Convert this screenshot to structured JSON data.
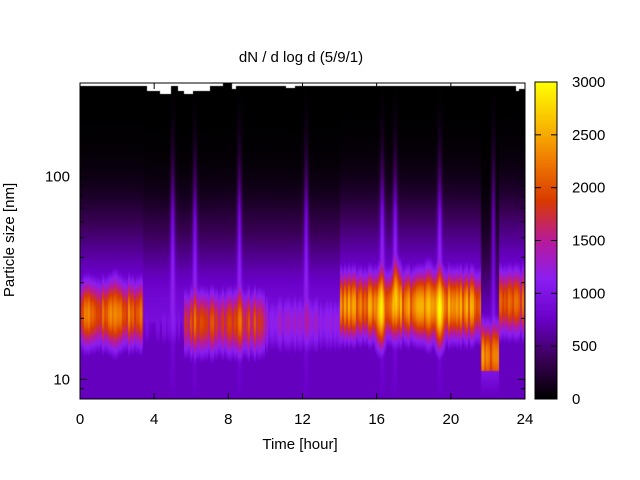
{
  "chart_data": {
    "type": "heatmap",
    "title": "dN / d log d (5/9/1)",
    "xlabel": "Time [hour]",
    "ylabel": "Particle size [nm]",
    "x_range": [
      0,
      24
    ],
    "y_range_nm": [
      8,
      290
    ],
    "y_scale": "log",
    "x_ticks": [
      "0",
      "4",
      "8",
      "12",
      "16",
      "20",
      "24"
    ],
    "y_ticks": [
      "10",
      "100"
    ],
    "colorbar": {
      "range": [
        0,
        3000
      ],
      "ticks": [
        "0",
        "500",
        "1000",
        "1500",
        "2000",
        "2500",
        "3000"
      ],
      "palette": [
        "#000000",
        "#3a0055",
        "#6a00c8",
        "#8a1ef2",
        "#b81a9a",
        "#d93a00",
        "#ef7a00",
        "#f9c000",
        "#ffff00"
      ]
    },
    "grid": false,
    "data_ceiling_nm": [
      [
        0,
        280
      ],
      [
        3.5,
        280
      ],
      [
        3.6,
        265
      ],
      [
        4.2,
        265
      ],
      [
        4.3,
        255
      ],
      [
        4.8,
        255
      ],
      [
        4.9,
        280
      ],
      [
        5.1,
        280
      ],
      [
        5.3,
        265
      ],
      [
        5.5,
        265
      ],
      [
        5.6,
        255
      ],
      [
        6.0,
        255
      ],
      [
        6.1,
        265
      ],
      [
        6.9,
        265
      ],
      [
        7.0,
        280
      ],
      [
        7.6,
        280
      ],
      [
        7.7,
        290
      ],
      [
        8.0,
        290
      ],
      [
        8.2,
        270
      ],
      [
        8.4,
        280
      ],
      [
        11.0,
        280
      ],
      [
        11.1,
        275
      ],
      [
        11.5,
        275
      ],
      [
        11.6,
        280
      ],
      [
        23.4,
        280
      ],
      [
        23.5,
        265
      ],
      [
        23.7,
        270
      ],
      [
        24,
        270
      ]
    ],
    "modes": [
      {
        "t": [
          0,
          3.4
        ],
        "d_nm": 21,
        "level": 2100
      },
      {
        "t": [
          3.4,
          5.6
        ],
        "d_nm": 19,
        "level": 900
      },
      {
        "t": [
          5.6,
          10
        ],
        "d_nm": 19,
        "level": 1800
      },
      {
        "t": [
          10,
          14
        ],
        "d_nm": 19,
        "level": 1250
      },
      {
        "t": [
          14,
          21.6
        ],
        "d_nm": 23,
        "level": 2300
      },
      {
        "t": [
          21.6,
          22.6
        ],
        "d_nm": 13,
        "level": 2200
      },
      {
        "t": [
          22.6,
          24
        ],
        "d_nm": 24,
        "level": 2000
      }
    ],
    "hot_spots": [
      {
        "t": 16.2,
        "d_nm": 22,
        "level": 2700
      },
      {
        "t": 17.1,
        "d_nm": 24,
        "level": 2450
      },
      {
        "t": 18.8,
        "d_nm": 23,
        "level": 2650
      },
      {
        "t": 19.4,
        "d_nm": 22,
        "level": 2750
      },
      {
        "t": 1.9,
        "d_nm": 21,
        "level": 2350
      }
    ],
    "vertical_streaks_hour": [
      5.0,
      6.2,
      8.6,
      12.2,
      16.3,
      17.0,
      19.4,
      22.3
    ]
  }
}
